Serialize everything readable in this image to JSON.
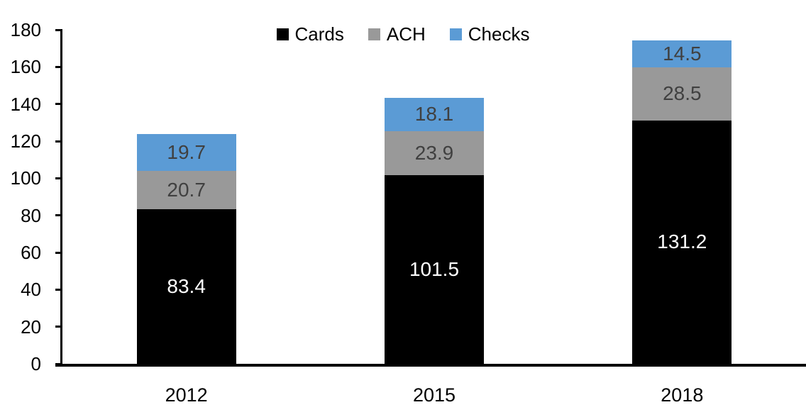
{
  "chart_data": {
    "type": "bar",
    "stacked": true,
    "title": "",
    "xlabel": "",
    "ylabel": "",
    "categories": [
      "2012",
      "2015",
      "2018"
    ],
    "series": [
      {
        "name": "Cards",
        "color": "#000000",
        "label_color": "#ffffff",
        "values": [
          83.4,
          101.5,
          131.2
        ]
      },
      {
        "name": "ACH",
        "color": "#999999",
        "label_color": "#404040",
        "values": [
          20.7,
          23.9,
          28.5
        ]
      },
      {
        "name": "Checks",
        "color": "#5b9bd5",
        "label_color": "#404040",
        "values": [
          19.7,
          18.1,
          14.5
        ]
      }
    ],
    "ylim": [
      0,
      180
    ],
    "ytick_step": 20,
    "ytick_labels": [
      "0",
      "20",
      "40",
      "60",
      "80",
      "100",
      "120",
      "140",
      "160",
      "180"
    ],
    "legend_position": "top-center",
    "legend_entries": [
      "Cards",
      "ACH",
      "Checks"
    ],
    "grid": false,
    "data_labels": true,
    "axis_color": "#000000",
    "background_color": "#ffffff"
  }
}
